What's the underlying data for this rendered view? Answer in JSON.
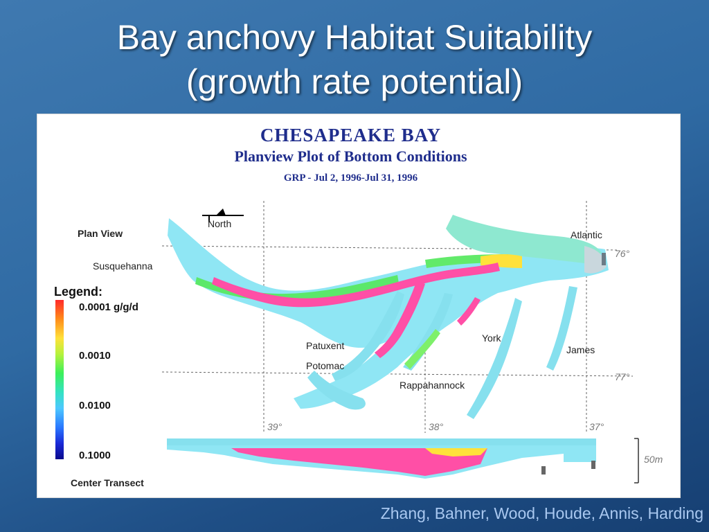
{
  "slide": {
    "title_line1": "Bay anchovy Habitat Suitability",
    "title_line2": "(growth rate potential)",
    "credits": "Zhang, Bahner, Wood, Houde, Annis, Harding"
  },
  "figure": {
    "title": "CHESAPEAKE BAY",
    "subtitle": "Planview Plot of Bottom Conditions",
    "period": "GRP - Jul 2, 1996-Jul 31, 1996",
    "north_label": "North",
    "plan_view_label": "Plan View",
    "center_transect_label": "Center Transect",
    "depth_scale_label": "50m",
    "place_labels": {
      "susquehanna": "Susquehanna",
      "atlantic": "Atlantic",
      "patuxent": "Patuxent",
      "potomac": "Potomac",
      "york": "York",
      "james": "James",
      "rappahannock": "Rappahannock"
    },
    "grid_labels": {
      "lon_76": "76°",
      "lon_77": "77°",
      "lat_39": "39°",
      "lat_38": "38°",
      "lat_37": "37°"
    },
    "legend": {
      "title": "Legend:",
      "values": [
        "0.0001 g/g/d",
        "0.0010",
        "0.0100",
        "0.1000"
      ]
    },
    "colors": {
      "high_growth": "#ff4fa6",
      "water_low": "#7fe0f0",
      "green": "#59e36a",
      "yellow": "#ffe13a",
      "title_blue": "#1f2d8c"
    }
  }
}
